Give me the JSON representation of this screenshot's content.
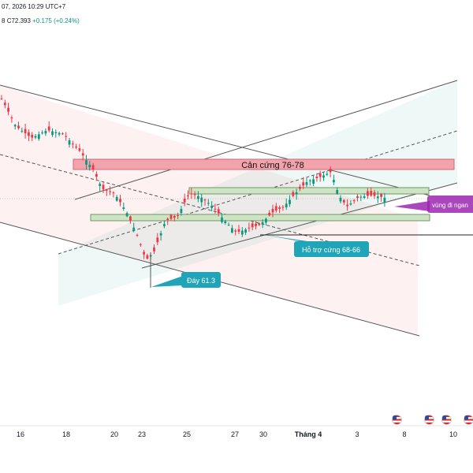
{
  "header": {
    "date_line": "07, 2026 10:29 UTC+7",
    "price_prefix": "8",
    "price_close": "C72.393",
    "price_change": "+0.175 (+0.24%)"
  },
  "annotations": {
    "resistance": "Cản cứng 76-78",
    "support": "Hỗ trợ cứng 68-66",
    "bottom": "Đáy 61.3",
    "range": "vùng đi ngan"
  },
  "x_axis": {
    "labels": [
      "16",
      "18",
      "20",
      "23",
      "25",
      "27",
      "30",
      "Tháng 4",
      "3",
      "8",
      "10"
    ]
  },
  "colors": {
    "up": "#089981",
    "down": "#f23645",
    "resistance_fill": "#f2a3ab",
    "support_fill": "#cfe3c6",
    "callout": "#20a4b8",
    "purple": "#9c27b0"
  },
  "icons": [
    "flag-us-icon",
    "flag-us-icon",
    "flag-us-icon",
    "flag-us-icon",
    "flag-us-icon"
  ]
}
